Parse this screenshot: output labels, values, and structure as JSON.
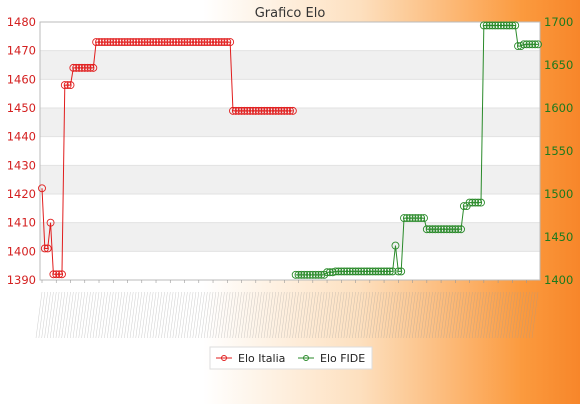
{
  "chart_data": {
    "type": "line",
    "title": "Grafico Elo",
    "legend_position": "bottom",
    "grid": true,
    "y_left": {
      "min": 1390,
      "max": 1480,
      "ticks": [
        1390,
        1400,
        1410,
        1420,
        1430,
        1440,
        1450,
        1460,
        1470,
        1480
      ],
      "color": "#d42020"
    },
    "y_right": {
      "min": 1400,
      "max": 1700,
      "ticks": [
        1400,
        1450,
        1500,
        1550,
        1600,
        1650,
        1700
      ],
      "color": "#1d7a1d"
    },
    "x_count": 175,
    "series": [
      {
        "name": "Elo Italia",
        "axis": "left",
        "color": "#e11d1d",
        "segments": [
          {
            "from": 0,
            "to": 0,
            "value": 1422
          },
          {
            "from": 1,
            "to": 2,
            "value": 1401
          },
          {
            "from": 3,
            "to": 3,
            "value": 1410
          },
          {
            "from": 4,
            "to": 7,
            "value": 1392
          },
          {
            "from": 8,
            "to": 10,
            "value": 1458
          },
          {
            "from": 11,
            "to": 18,
            "value": 1464
          },
          {
            "from": 19,
            "to": 66,
            "value": 1473
          },
          {
            "from": 67,
            "to": 88,
            "value": 1449
          }
        ]
      },
      {
        "name": "Elo FIDE",
        "axis": "right",
        "color": "#2a8a2a",
        "segments": [
          {
            "from": 89,
            "to": 99,
            "value": 1406
          },
          {
            "from": 100,
            "to": 102,
            "value": 1409
          },
          {
            "from": 103,
            "to": 123,
            "value": 1410
          },
          {
            "from": 124,
            "to": 124,
            "value": 1440
          },
          {
            "from": 125,
            "to": 126,
            "value": 1410
          },
          {
            "from": 127,
            "to": 134,
            "value": 1472
          },
          {
            "from": 135,
            "to": 147,
            "value": 1459
          },
          {
            "from": 148,
            "to": 149,
            "value": 1486
          },
          {
            "from": 150,
            "to": 154,
            "value": 1490
          },
          {
            "from": 155,
            "to": 166,
            "value": 1696
          },
          {
            "from": 167,
            "to": 168,
            "value": 1672
          },
          {
            "from": 169,
            "to": 174,
            "value": 1674
          }
        ]
      }
    ]
  }
}
